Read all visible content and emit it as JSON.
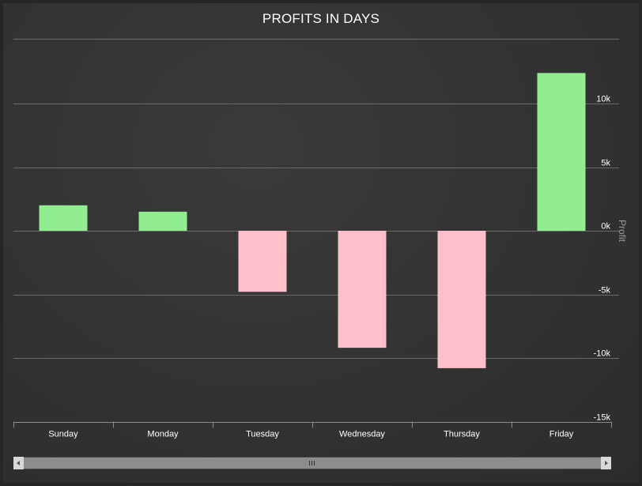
{
  "chart_data": {
    "type": "bar",
    "title": "PROFITS IN DAYS",
    "xlabel": "",
    "ylabel": "Profit",
    "categories": [
      "Sunday",
      "Monday",
      "Tuesday",
      "Wednesday",
      "Thursday",
      "Friday"
    ],
    "values": [
      2000,
      1500,
      -4800,
      -9200,
      -10800,
      12400
    ],
    "ylim": [
      -15000,
      15000
    ],
    "yticks": [
      {
        "value": 10000,
        "label": "10k"
      },
      {
        "value": 5000,
        "label": "5k"
      },
      {
        "value": 0,
        "label": "0k"
      },
      {
        "value": -5000,
        "label": "-5k"
      },
      {
        "value": -10000,
        "label": "-10k"
      },
      {
        "value": -15000,
        "label": "-15k"
      }
    ],
    "y_axis_side": "right",
    "grid": true,
    "colors": {
      "positive": "#90ee90",
      "negative": "#ffc0cb"
    }
  },
  "scrollbar": {
    "grip": "grip-icon"
  }
}
